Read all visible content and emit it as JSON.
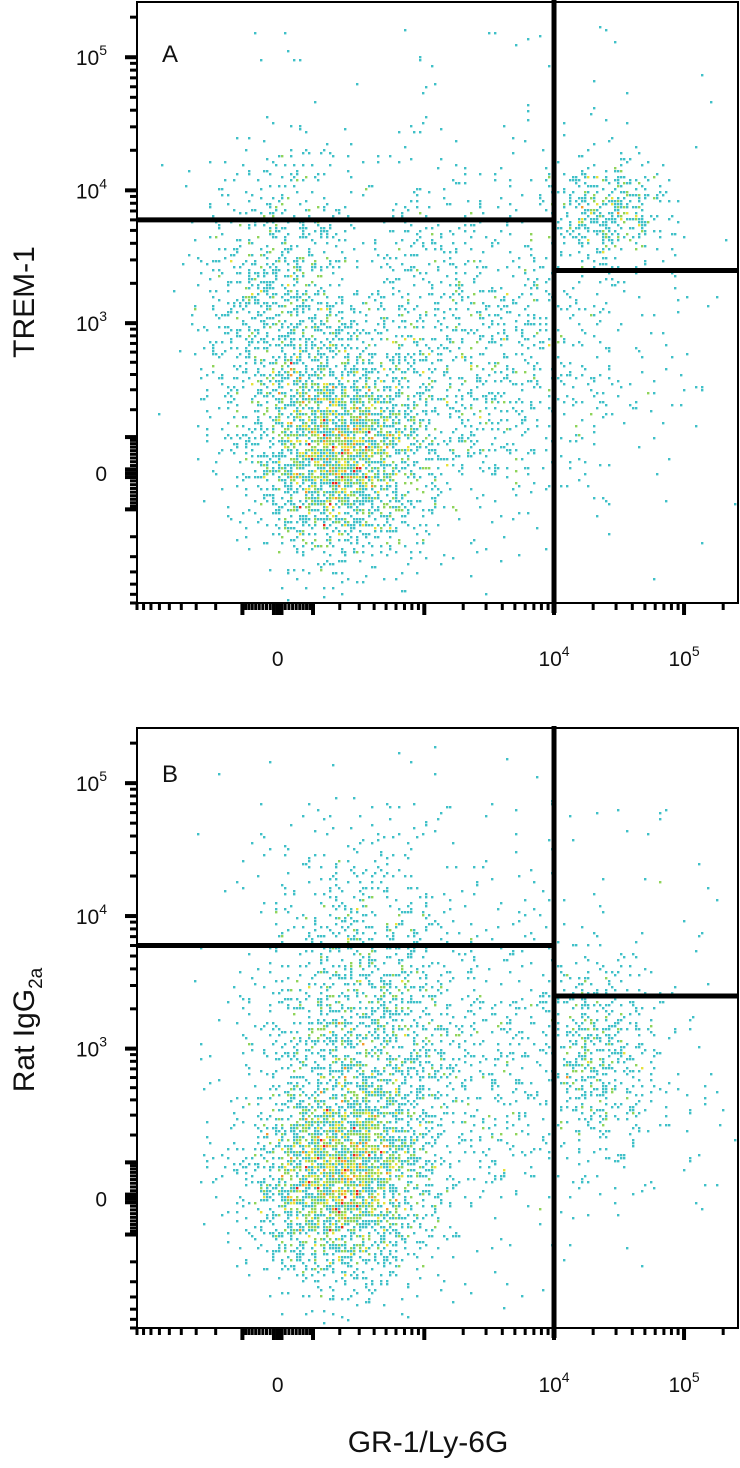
{
  "figure": {
    "x_title": "GR-1/Ly-6G",
    "colors": {
      "frame": "#000000",
      "gate": "#000000",
      "density_scale": [
        "#2c3fa8",
        "#2f86c9",
        "#3fc0c8",
        "#8fd45a",
        "#e6e23a",
        "#f39a2b",
        "#e8251c"
      ]
    }
  },
  "chart_data": [
    {
      "type": "scatter",
      "subtype": "flow-cytometry density dot plot",
      "panel_label": "A",
      "ylabel": "TREM-1",
      "xscale": "biexponential",
      "yscale": "biexponential",
      "x_tick_labels": [
        {
          "base": "0",
          "exp": ""
        },
        {
          "base": "10",
          "exp": "4"
        },
        {
          "base": "10",
          "exp": "5"
        }
      ],
      "y_tick_labels": [
        {
          "base": "0",
          "exp": ""
        },
        {
          "base": "10",
          "exp": "3"
        },
        {
          "base": "10",
          "exp": "4"
        },
        {
          "base": "10",
          "exp": "5"
        }
      ],
      "gates": {
        "x_threshold": 10000,
        "y_threshold_left": 6000,
        "y_threshold_right": 2500
      },
      "populations": [
        {
          "name": "",
          "x_center": 200,
          "y_center": 50,
          "x_spread": 0.55,
          "y_spread": 0.6,
          "points": 2600,
          "peak_density": "high"
        },
        {
          "name": "",
          "x_center": 0,
          "y_center": 1400,
          "x_spread": 0.45,
          "y_spread": 0.9,
          "points": 900,
          "peak_density": "medium"
        },
        {
          "name": "",
          "x_center": 1800,
          "y_center": 600,
          "x_spread": 1.1,
          "y_spread": 1.1,
          "points": 1400,
          "peak_density": "low"
        },
        {
          "name": "",
          "x_center": 26000,
          "y_center": 6500,
          "x_spread": 0.35,
          "y_spread": 0.35,
          "points": 420,
          "peak_density": "medium"
        }
      ]
    },
    {
      "type": "scatter",
      "subtype": "flow-cytometry density dot plot",
      "panel_label": "B",
      "ylabel": "Rat IgG",
      "ylabel_subscript": "2a",
      "xscale": "biexponential",
      "yscale": "biexponential",
      "x_tick_labels": [
        {
          "base": "0",
          "exp": ""
        },
        {
          "base": "10",
          "exp": "4"
        },
        {
          "base": "10",
          "exp": "5"
        }
      ],
      "y_tick_labels": [
        {
          "base": "0",
          "exp": ""
        },
        {
          "base": "10",
          "exp": "3"
        },
        {
          "base": "10",
          "exp": "4"
        },
        {
          "base": "10",
          "exp": "5"
        }
      ],
      "gates": {
        "x_threshold": 10000,
        "y_threshold_left": 6000,
        "y_threshold_right": 2500
      },
      "populations": [
        {
          "name": "",
          "x_center": 200,
          "y_center": 50,
          "x_spread": 0.55,
          "y_spread": 0.6,
          "points": 2600,
          "peak_density": "high"
        },
        {
          "name": "",
          "x_center": 300,
          "y_center": 1200,
          "x_spread": 0.6,
          "y_spread": 1.2,
          "points": 1500,
          "peak_density": "medium"
        },
        {
          "name": "",
          "x_center": 2500,
          "y_center": 700,
          "x_spread": 1.2,
          "y_spread": 1.2,
          "points": 900,
          "peak_density": "low"
        },
        {
          "name": "",
          "x_center": 24000,
          "y_center": 900,
          "x_spread": 0.35,
          "y_spread": 0.55,
          "points": 420,
          "peak_density": "medium"
        }
      ]
    }
  ]
}
